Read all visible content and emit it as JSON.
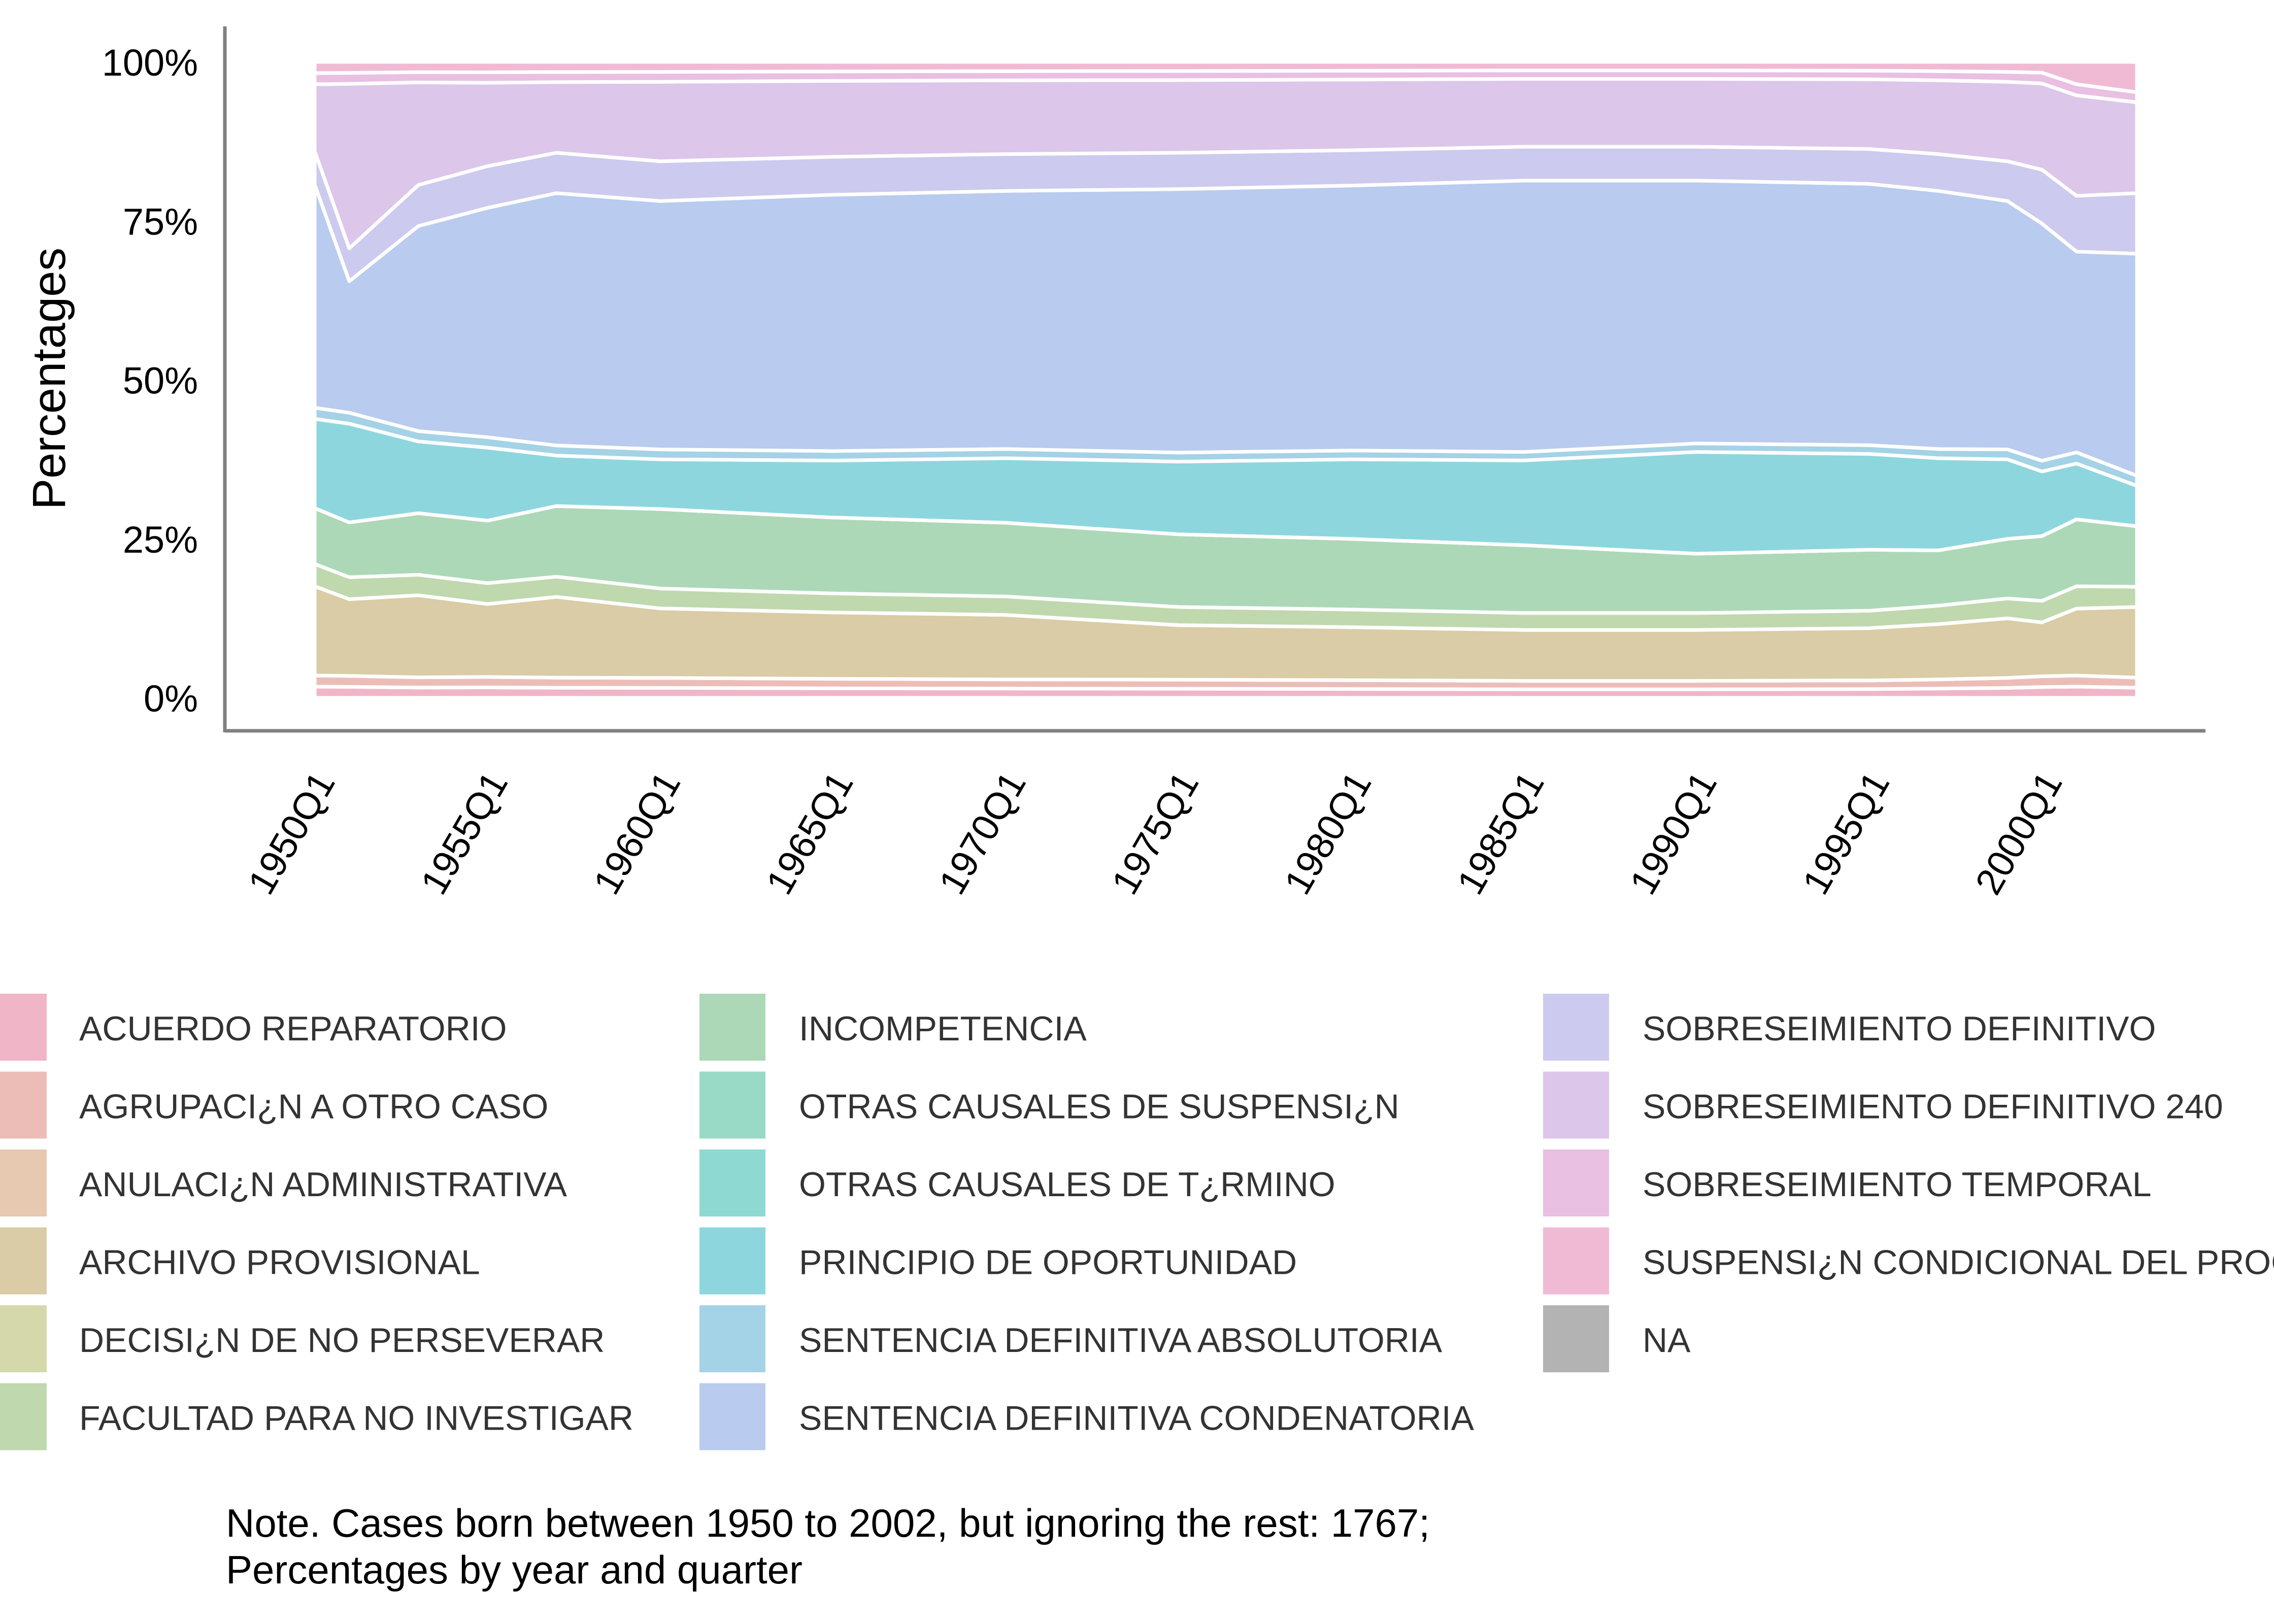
{
  "chart_data": {
    "type": "area",
    "stacked": true,
    "normalized": true,
    "xlabel": "",
    "ylabel": "Percentages",
    "ylim": [
      0,
      100
    ],
    "y_ticks": [
      "0%",
      "25%",
      "50%",
      "75%",
      "100%"
    ],
    "x_range": [
      "1950Q1",
      "2002Q4"
    ],
    "x_ticks": [
      "1950Q1",
      "1955Q1",
      "1960Q1",
      "1965Q1",
      "1970Q1",
      "1975Q1",
      "1980Q1",
      "1985Q1",
      "1990Q1",
      "1995Q1",
      "2000Q1"
    ],
    "grid": false,
    "legend_position": "bottom",
    "legend_columns": 3,
    "x": [
      "1950Q1",
      "1951Q1",
      "1953Q1",
      "1955Q1",
      "1957Q1",
      "1960Q1",
      "1965Q1",
      "1970Q1",
      "1975Q1",
      "1980Q1",
      "1985Q1",
      "1990Q1",
      "1995Q1",
      "1997Q1",
      "1999Q1",
      "2000Q1",
      "2001Q1",
      "2002Q4"
    ],
    "series": [
      {
        "name": "ACUERDO REPARATORIO",
        "color": "#f0b6c8",
        "values": [
          1,
          1,
          1,
          1,
          1,
          1,
          1,
          1,
          1,
          1,
          1,
          1,
          1,
          1,
          1,
          1,
          1,
          1
        ]
      },
      {
        "name": "AGRUPACI¿N A OTRO CASO",
        "color": "#ecbdb7",
        "values": [
          1,
          1,
          1,
          1,
          1,
          1,
          1,
          1,
          1,
          1,
          1,
          1,
          1,
          1,
          1,
          1,
          1,
          1
        ]
      },
      {
        "name": "ANULACI¿N ADMINISTRATIVA",
        "color": "#e6c9b0",
        "values": [
          0,
          0,
          0,
          0,
          0,
          0,
          0,
          0,
          0,
          0,
          0,
          0,
          0,
          0,
          0,
          0,
          0,
          0
        ]
      },
      {
        "name": "ARCHIVO PROVISIONAL",
        "color": "#d9cca6",
        "values": [
          8,
          7,
          8,
          7,
          8,
          7,
          7,
          7,
          6,
          6,
          6,
          6,
          6,
          6,
          6,
          5,
          6,
          7
        ]
      },
      {
        "name": "DECISI¿N DE NO PERSEVERAR",
        "color": "#d4d8aa",
        "values": [
          0,
          0,
          0,
          0,
          0,
          0,
          0,
          0,
          0,
          0,
          0,
          0,
          0,
          0,
          0,
          0,
          0,
          0
        ]
      },
      {
        "name": "FACULTAD PARA NO INVESTIGAR",
        "color": "#bfd8ae",
        "values": [
          2,
          2,
          2,
          2,
          2,
          2,
          2,
          2,
          2,
          2,
          2,
          2,
          2,
          2,
          2,
          2,
          2,
          2
        ]
      },
      {
        "name": "INCOMPETENCIA",
        "color": "#acd8b8",
        "values": [
          5,
          5,
          6,
          6,
          7,
          8,
          8,
          8,
          8,
          8,
          8,
          7,
          7,
          6,
          6,
          6,
          6,
          6
        ]
      },
      {
        "name": "OTRAS CAUSALES DE SUSPENSI¿N",
        "color": "#99dac6",
        "values": [
          0,
          0,
          0,
          0,
          0,
          0,
          0,
          0,
          0,
          0,
          0,
          0,
          0,
          0,
          0,
          0,
          0,
          0
        ]
      },
      {
        "name": "OTRAS CAUSALES DE T¿RMINO",
        "color": "#8ed9d1",
        "values": [
          0,
          0,
          0,
          0,
          0,
          0,
          0,
          0,
          0,
          0,
          0,
          0,
          0,
          0,
          0,
          0,
          0,
          0
        ]
      },
      {
        "name": "PRINCIPIO DE OPORTUNIDAD",
        "color": "#8ed6de",
        "values": [
          8,
          9,
          7,
          7,
          5,
          5,
          6,
          7,
          8,
          9,
          10,
          12,
          11,
          10,
          8,
          6,
          5,
          4
        ]
      },
      {
        "name": "SENTENCIA DEFINITIVA ABSOLUTORIA",
        "color": "#a4d2e6",
        "values": [
          1,
          1,
          1,
          1,
          1,
          1,
          1,
          1,
          1,
          1,
          1,
          1,
          1,
          1,
          1,
          1,
          1,
          1
        ]
      },
      {
        "name": "SENTENCIA DEFINITIVA CONDENATORIA",
        "color": "#b9cbee",
        "values": [
          20,
          12,
          20,
          22,
          25,
          25,
          27,
          28,
          29,
          30,
          32,
          31,
          30,
          28,
          25,
          22,
          18,
          22
        ]
      },
      {
        "name": "SOBRESEIMIENTO DEFINITIVO",
        "color": "#cccaee",
        "values": [
          3,
          3,
          4,
          4,
          4,
          4,
          4,
          4,
          4,
          4,
          4,
          4,
          4,
          4,
          4,
          5,
          5,
          6
        ]
      },
      {
        "name": "SOBRESEIMIENTO DEFINITIVO 240",
        "color": "#dcc6ea",
        "values": [
          6,
          15,
          10,
          8,
          7,
          8,
          8,
          8,
          8,
          8,
          8,
          8,
          8,
          8,
          8,
          8,
          9,
          9
        ]
      },
      {
        "name": "SOBRESEIMIENTO TEMPORAL",
        "color": "#e9bfe2",
        "values": [
          1,
          1,
          1,
          1,
          1,
          1,
          1,
          1,
          1,
          1,
          1,
          1,
          1,
          1,
          1,
          1,
          1,
          1
        ]
      },
      {
        "name": "SUSPENSI¿N CONDICIONAL DEL PROCEDIMIENTO",
        "color": "#f0bad5",
        "values": [
          1,
          1,
          1,
          1,
          1,
          1,
          1,
          1,
          1,
          1,
          1,
          1,
          1,
          1,
          1,
          1,
          2,
          3
        ]
      },
      {
        "name": "NA",
        "color": "#b3b3b3",
        "values": [
          0,
          0,
          0,
          0,
          0,
          0,
          0,
          0,
          0,
          0,
          0,
          0,
          0,
          0,
          0,
          0,
          0,
          0
        ]
      }
    ]
  },
  "note": {
    "line1": "Note. Cases born between 1950 to 2002, but ignoring the rest: 1767;",
    "line2": "Percentages by year and quarter"
  }
}
